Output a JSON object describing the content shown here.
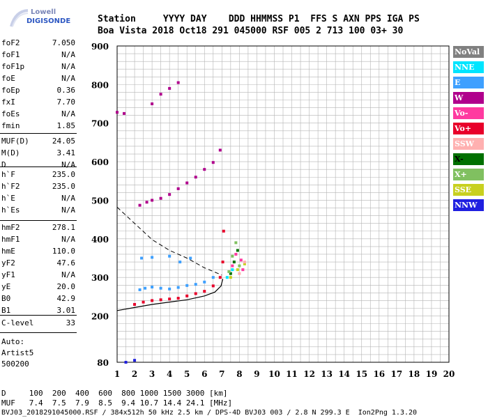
{
  "logo": {
    "line1": "Lowell",
    "line2": "DIGISONDE"
  },
  "header": {
    "row1": "Station     YYYY DAY    DDD HHMMSS P1  FFS S AXN PPS IGA PS",
    "row2": "Boa Vista 2018 Oct18 291 045000 RSF 005 2 713 100 03+ 30"
  },
  "params_group1": [
    {
      "label": "foF2",
      "value": "7.050"
    },
    {
      "label": "foF1",
      "value": "N/A"
    },
    {
      "label": "foF1p",
      "value": "N/A"
    },
    {
      "label": "foE",
      "value": "N/A"
    },
    {
      "label": "foEp",
      "value": "0.36"
    },
    {
      "label": "fxI",
      "value": "7.70"
    },
    {
      "label": "foEs",
      "value": "N/A"
    },
    {
      "label": "fmin",
      "value": "1.85"
    }
  ],
  "params_group2": [
    {
      "label": "MUF(D)",
      "value": "24.05"
    },
    {
      "label": "M(D)",
      "value": "3.41"
    },
    {
      "label": "D",
      "value": "N/A"
    }
  ],
  "params_group3": [
    {
      "label": "h`F",
      "value": "235.0"
    },
    {
      "label": "h`F2",
      "value": "235.0"
    },
    {
      "label": "h`E",
      "value": "N/A"
    },
    {
      "label": "h`Es",
      "value": "N/A"
    }
  ],
  "params_group4": [
    {
      "label": "hmF2",
      "value": "278.1"
    },
    {
      "label": "hmF1",
      "value": "N/A"
    },
    {
      "label": "hmE",
      "value": "110.0"
    },
    {
      "label": "yF2",
      "value": "47.6"
    },
    {
      "label": "yF1",
      "value": "N/A"
    },
    {
      "label": "yE",
      "value": "20.0"
    },
    {
      "label": "B0",
      "value": "42.9"
    },
    {
      "label": "B1",
      "value": "3.01"
    }
  ],
  "params_group5": [
    {
      "label": "C-level",
      "value": "33"
    }
  ],
  "auto": {
    "line1": "Auto:",
    "line2": "Artist5",
    "line3": "500200"
  },
  "legend": [
    {
      "label": "NoVal",
      "color": "#808080",
      "text": "#ffffff"
    },
    {
      "label": "NNE",
      "color": "#00e5ff",
      "text": "#ffffff"
    },
    {
      "label": "E",
      "color": "#3ea0ff",
      "text": "#ffffff"
    },
    {
      "label": "W",
      "color": "#b0008c",
      "text": "#ffffff"
    },
    {
      "label": "Vo-",
      "color": "#ff3aa0",
      "text": "#ffffff"
    },
    {
      "label": "Vo+",
      "color": "#e8002a",
      "text": "#ffffff"
    },
    {
      "label": "SSW",
      "color": "#ffb0b0",
      "text": "#ffffff"
    },
    {
      "label": "X-",
      "color": "#007000",
      "text": "#000000"
    },
    {
      "label": "X+",
      "color": "#80c060",
      "text": "#ffffff"
    },
    {
      "label": "SSE",
      "color": "#c8d020",
      "text": "#ffffff"
    },
    {
      "label": "NNW",
      "color": "#2020e0",
      "text": "#ffffff"
    }
  ],
  "footer": {
    "row1": "D     100  200  400  600  800 1000 1500 3000 [km]",
    "row2": "MUF   7.4  7.5  7.9  8.5  9.4 10.7 14.4 24.1 [MHz]",
    "row3": "BVJ03_2018291045000.RSF / 384x512h 50 kHz 2.5 km / DPS-4D BVJ03 003 / 2.8 N 299.3 E  Ion2Png 1.3.20"
  },
  "chart_data": {
    "type": "scatter",
    "title": "",
    "xlabel": "",
    "ylabel": "",
    "xlim": [
      1,
      20
    ],
    "ylim": [
      80,
      900
    ],
    "xticks": [
      "1",
      "2",
      "3",
      "4",
      "5",
      "6",
      "7",
      "8",
      "9",
      "10",
      "11",
      "12",
      "13",
      "14",
      "15",
      "16",
      "17",
      "18",
      "19",
      "20"
    ],
    "yticks": [
      "80",
      "200",
      "300",
      "400",
      "500",
      "600",
      "700",
      "800",
      "900"
    ],
    "grid": true,
    "series": [
      {
        "name": "NoVal",
        "color": "#808080",
        "points": []
      },
      {
        "name": "E",
        "color": "#3ea0ff",
        "points": [
          [
            2.3,
            268
          ],
          [
            2.6,
            272
          ],
          [
            3.0,
            275
          ],
          [
            3.5,
            272
          ],
          [
            4.0,
            270
          ],
          [
            4.5,
            274
          ],
          [
            5.0,
            279
          ],
          [
            5.5,
            282
          ],
          [
            6.0,
            288
          ],
          [
            6.5,
            300
          ],
          [
            2.4,
            350
          ],
          [
            3.0,
            352
          ],
          [
            4.0,
            355
          ],
          [
            4.6,
            340
          ],
          [
            5.2,
            350
          ]
        ]
      },
      {
        "name": "W",
        "color": "#b0008c",
        "points": [
          [
            2.3,
            487
          ],
          [
            2.7,
            495
          ],
          [
            3.0,
            500
          ],
          [
            3.5,
            505
          ],
          [
            4.0,
            515
          ],
          [
            4.5,
            530
          ],
          [
            5.0,
            545
          ],
          [
            5.5,
            560
          ],
          [
            6.0,
            580
          ],
          [
            6.5,
            598
          ],
          [
            6.9,
            630
          ],
          [
            3.0,
            750
          ],
          [
            3.5,
            775
          ],
          [
            4.0,
            790
          ],
          [
            4.5,
            805
          ],
          [
            1.0,
            728
          ],
          [
            1.4,
            725
          ]
        ]
      },
      {
        "name": "Vo+",
        "color": "#e8002a",
        "points": [
          [
            2.0,
            230
          ],
          [
            2.5,
            236
          ],
          [
            3.0,
            240
          ],
          [
            3.5,
            242
          ],
          [
            4.0,
            244
          ],
          [
            4.5,
            246
          ],
          [
            5.0,
            252
          ],
          [
            5.5,
            258
          ],
          [
            6.0,
            264
          ],
          [
            6.5,
            278
          ],
          [
            6.9,
            300
          ],
          [
            7.05,
            340
          ],
          [
            7.1,
            420
          ]
        ]
      },
      {
        "name": "Vo-",
        "color": "#ff3aa0",
        "points": [
          [
            7.6,
            330
          ],
          [
            7.8,
            360
          ],
          [
            8.1,
            345
          ],
          [
            8.2,
            320
          ]
        ]
      },
      {
        "name": "X-",
        "color": "#007000",
        "points": [
          [
            7.5,
            310
          ],
          [
            7.7,
            340
          ],
          [
            7.9,
            370
          ]
        ]
      },
      {
        "name": "X+",
        "color": "#80c060",
        "points": [
          [
            7.4,
            315
          ],
          [
            7.6,
            355
          ],
          [
            7.8,
            390
          ],
          [
            8.0,
            330
          ]
        ]
      },
      {
        "name": "SSE",
        "color": "#c8d020",
        "points": [
          [
            7.5,
            300
          ],
          [
            7.9,
            320
          ],
          [
            8.3,
            335
          ]
        ]
      },
      {
        "name": "SSW",
        "color": "#ffb0b0",
        "points": [
          [
            8.0,
            310
          ],
          [
            8.3,
            340
          ]
        ]
      },
      {
        "name": "NNE",
        "color": "#00e5ff",
        "points": [
          [
            7.3,
            300
          ],
          [
            7.6,
            320
          ]
        ]
      },
      {
        "name": "NNW",
        "color": "#2020e0",
        "points": [
          [
            1.5,
            80
          ],
          [
            2.0,
            85
          ]
        ]
      }
    ],
    "profile_solid": [
      [
        1.0,
        214
      ],
      [
        2.0,
        222
      ],
      [
        3.0,
        230
      ],
      [
        4.0,
        236
      ],
      [
        5.0,
        242
      ],
      [
        6.0,
        252
      ],
      [
        6.6,
        262
      ],
      [
        6.95,
        278
      ],
      [
        7.05,
        296
      ]
    ],
    "profile_dashed": [
      [
        1.0,
        482
      ],
      [
        2.0,
        440
      ],
      [
        3.0,
        398
      ],
      [
        4.0,
        370
      ],
      [
        5.0,
        350
      ],
      [
        6.0,
        325
      ],
      [
        7.0,
        306
      ]
    ]
  }
}
